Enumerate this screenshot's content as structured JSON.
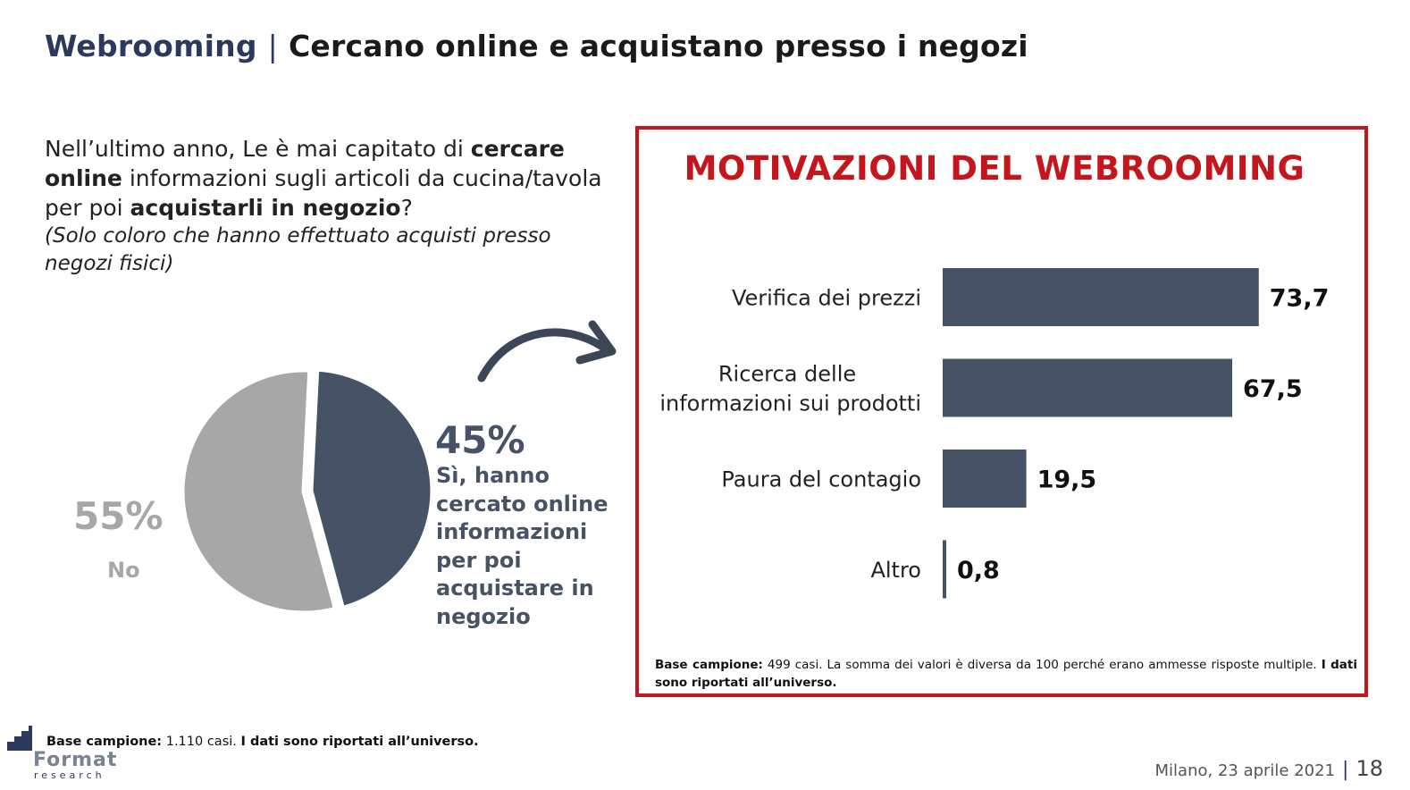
{
  "header": {
    "title_main": "Webrooming",
    "separator": "|",
    "title_sub": "Cercano online e acquistano presso i negozi"
  },
  "question": {
    "p1": "Nell’ultimo anno, Le è mai capitato di ",
    "b1": "cercare online",
    "p2": " informazioni sugli articoli da cucina/tavola per poi ",
    "b2": "acquistarli in negozio",
    "p3": "?",
    "note": "(Solo coloro che hanno effettuato acquisti presso negozi fisici)"
  },
  "pie": {
    "yes_pct_label": "45%",
    "yes_desc": "Sì, hanno cercato online informazioni per poi acquistare in negozio",
    "no_pct_label": "55%",
    "no_label": "No"
  },
  "panel": {
    "title": "MOTIVAZIONI DEL WEBROOMING",
    "note_bold": "Base campione:",
    "note_text": " 499 casi. La somma dei valori è diversa da 100 perché erano ammesse risposte multiple. ",
    "note_bold2": "I dati sono riportati all’universo."
  },
  "footer": {
    "note_bold": "Base campione:",
    "note_text": " 1.110 casi. ",
    "note_bold2": "I dati sono riportati all’universo.",
    "logo_text": "Format",
    "logo_sub": "research",
    "place_date": "Milano, 23 aprile 2021",
    "separator": "|",
    "page_number": "18"
  },
  "colors": {
    "accent_red": "#c4161c",
    "bar": "#465266",
    "pie_no": "#a7a7a7",
    "title_blue": "#2b3a5c"
  },
  "chart_data": [
    {
      "type": "pie",
      "categories": [
        "Sì",
        "No"
      ],
      "values": [
        45,
        55
      ],
      "labels": [
        "45%",
        "55%"
      ],
      "colors": [
        "#465266",
        "#a7a7a7"
      ]
    },
    {
      "type": "bar",
      "orientation": "horizontal",
      "title": "MOTIVAZIONI DEL WEBROOMING",
      "categories": [
        "Verifica dei prezzi",
        "Ricerca delle informazioni sui prodotti",
        "Paura del contagio",
        "Altro"
      ],
      "category_lines": [
        [
          "Verifica dei prezzi"
        ],
        [
          "Ricerca delle",
          "informazioni sui prodotti"
        ],
        [
          "Paura del contagio"
        ],
        [
          "Altro"
        ]
      ],
      "values": [
        73.7,
        67.5,
        19.5,
        0.8
      ],
      "value_labels": [
        "73,7",
        "67,5",
        "19,5",
        "0,8"
      ],
      "xlim": [
        0,
        100
      ],
      "grid": false
    }
  ]
}
